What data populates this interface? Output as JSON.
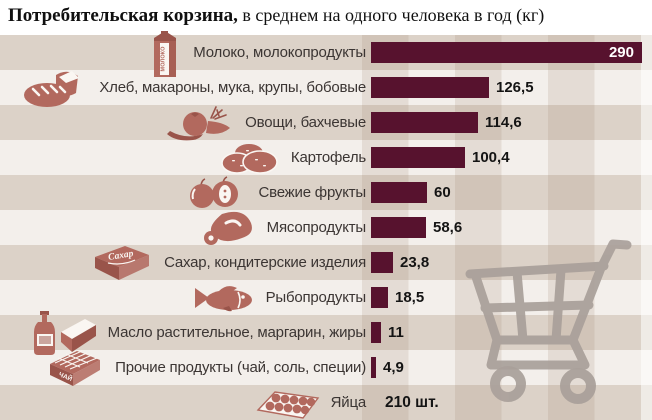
{
  "title": {
    "bold": "Потребительская корзина,",
    "rest": " в среднем на одного человека в год (кг)"
  },
  "chart_data": {
    "type": "bar",
    "orientation": "horizontal",
    "title": "Потребительская корзина, в среднем на одного человека в год (кг)",
    "unit": "кг в год на человека",
    "categories": [
      "Молоко, молокопродукты",
      "Хлеб, макароны, мука, крупы, бобовые",
      "Овощи, бахчевые",
      "Картофель",
      "Свежие фрукты",
      "Мясопродукты",
      "Сахар, кондитерские изделия",
      "Рыбопродукты",
      "Масло растительное, маргарин, жиры",
      "Прочие продукты (чай, соль, специи)",
      "Яйца"
    ],
    "values": [
      290,
      126.5,
      114.6,
      100.4,
      60,
      58.6,
      23.8,
      18.5,
      11,
      4.9,
      210
    ],
    "value_labels": [
      "290",
      "126,5",
      "114,6",
      "100,4",
      "60",
      "58,6",
      "23,8",
      "18,5",
      "11",
      "4,9",
      "210 шт."
    ],
    "xlim": [
      0,
      290
    ],
    "grid": false,
    "legend": false,
    "note": "Яйца указаны текстом без полосы — 210 шт."
  },
  "rows": [
    {
      "icon": "milk-carton-icon",
      "label": "Молоко, молокопродукты",
      "value": 290,
      "value_label": "290",
      "value_position": "inside"
    },
    {
      "icon": "bread-icon",
      "label": "Хлеб, макароны, мука, крупы, бобовые",
      "value": 126.5,
      "value_label": "126,5",
      "value_position": "outside"
    },
    {
      "icon": "vegetables-icon",
      "label": "Овощи, бахчевые",
      "value": 114.6,
      "value_label": "114,6",
      "value_position": "outside"
    },
    {
      "icon": "potatoes-icon",
      "label": "Картофель",
      "value": 100.4,
      "value_label": "100,4",
      "value_position": "outside"
    },
    {
      "icon": "fruits-icon",
      "label": "Свежие фрукты",
      "value": 60,
      "value_label": "60",
      "value_position": "outside"
    },
    {
      "icon": "meat-icon",
      "label": "Мясопродукты",
      "value": 58.6,
      "value_label": "58,6",
      "value_position": "outside"
    },
    {
      "icon": "sugar-box-icon",
      "label": "Сахар, кондитерские изделия",
      "value": 23.8,
      "value_label": "23,8",
      "value_position": "outside"
    },
    {
      "icon": "fish-icon",
      "label": "Рыбопродукты",
      "value": 18.5,
      "value_label": "18,5",
      "value_position": "outside"
    },
    {
      "icon": "oil-butter-icon",
      "label": "Масло растительное, маргарин, жиры",
      "value": 11,
      "value_label": "11",
      "value_position": "outside"
    },
    {
      "icon": "tea-box-icon",
      "label": "Прочие продукты (чай, соль, специи)",
      "value": 4.9,
      "value_label": "4,9",
      "value_position": "outside"
    },
    {
      "icon": "eggs-tray-icon",
      "label": "Яйца",
      "value": null,
      "value_label": "210 шт.",
      "value_position": "no-bar"
    }
  ],
  "icon_texts": {
    "milk": "МОЛОКО",
    "sugar": "Сахар",
    "tea": "ЧАЙ"
  },
  "colors": {
    "bar": "#57122e",
    "icon": "#b2695e",
    "icon_dark": "#99544a",
    "icon_white": "#faf6f2",
    "band_beige": "#dcd2c8",
    "band_cream": "#f3efeb",
    "cart": "#a9a09a",
    "label_text": "#3b3533",
    "value_text": "#141414",
    "value_inside_text": "#ffffff"
  }
}
